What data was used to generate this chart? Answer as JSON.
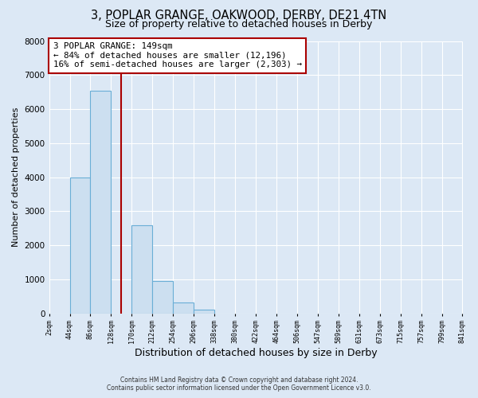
{
  "title": "3, POPLAR GRANGE, OAKWOOD, DERBY, DE21 4TN",
  "subtitle": "Size of property relative to detached houses in Derby",
  "bar_values": [
    0,
    4000,
    6550,
    0,
    2600,
    950,
    320,
    120,
    0,
    0,
    0,
    0,
    0,
    0,
    0,
    0,
    0,
    0,
    0,
    0
  ],
  "bin_edges": [
    2,
    44,
    86,
    128,
    170,
    212,
    254,
    296,
    338,
    380,
    422,
    464,
    506,
    547,
    589,
    631,
    673,
    715,
    757,
    799,
    841
  ],
  "x_tick_labels": [
    "2sqm",
    "44sqm",
    "86sqm",
    "128sqm",
    "170sqm",
    "212sqm",
    "254sqm",
    "296sqm",
    "338sqm",
    "380sqm",
    "422sqm",
    "464sqm",
    "506sqm",
    "547sqm",
    "589sqm",
    "631sqm",
    "673sqm",
    "715sqm",
    "757sqm",
    "799sqm",
    "841sqm"
  ],
  "ylabel": "Number of detached properties",
  "xlabel": "Distribution of detached houses by size in Derby",
  "ylim": [
    0,
    8000
  ],
  "yticks": [
    0,
    1000,
    2000,
    3000,
    4000,
    5000,
    6000,
    7000,
    8000
  ],
  "bar_color": "#ccdff0",
  "bar_edge_color": "#6aaed6",
  "vline_x": 149,
  "vline_color": "#aa0000",
  "annotation_line1": "3 POPLAR GRANGE: 149sqm",
  "annotation_line2": "← 84% of detached houses are smaller (12,196)",
  "annotation_line3": "16% of semi-detached houses are larger (2,303) →",
  "annotation_box_color": "#ffffff",
  "annotation_box_edge_color": "#aa0000",
  "footer_line1": "Contains HM Land Registry data © Crown copyright and database right 2024.",
  "footer_line2": "Contains public sector information licensed under the Open Government Licence v3.0.",
  "background_color": "#dce8f5",
  "grid_color": "#ffffff",
  "title_fontsize": 10.5,
  "subtitle_fontsize": 9
}
